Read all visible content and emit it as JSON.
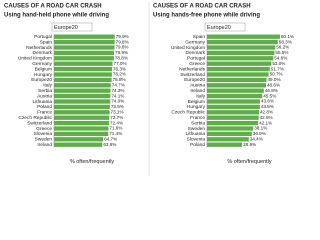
{
  "chart_data": [
    {
      "type": "barh",
      "title": "CAUSES OF A ROAD CAR CRASH",
      "subtitle": "Using hand-held phone while driving",
      "reference_label": "Europe20",
      "xlabel": "% often/frequently",
      "color": "#5fae4a",
      "xlim": [
        0,
        100
      ],
      "categories": [
        "Portugal",
        "Spain",
        "Netherlands",
        "Denmark",
        "United Kingdom",
        "Germany",
        "Belgium",
        "Hungary",
        "Europe20",
        "Italy",
        "Serbia",
        "Austria",
        "Lithuania",
        "Poland",
        "France",
        "Czech Republic",
        "Switzerland",
        "Greece",
        "Slovenia",
        "Sweden",
        "Ireland"
      ],
      "values": [
        79.9,
        79.8,
        79.6,
        78.9,
        78.8,
        77.0,
        76.3,
        76.2,
        75.8,
        74.7,
        74.3,
        74.1,
        74.0,
        73.5,
        73.1,
        72.7,
        72.4,
        71.6,
        71.4,
        64.7,
        63.6
      ],
      "value_labels": [
        "79.9%",
        "79.8%",
        "79.6%",
        "78.9%",
        "78.8%",
        "77.0%",
        "76.3%",
        "76.2%",
        "75.8%",
        "74.7%",
        "74.3%",
        "74.1%",
        "74.0%",
        "73.5%",
        "73.1%",
        "72.7%",
        "72.4%",
        "71.6%",
        "71.4%",
        "64.7%",
        "63.6%"
      ]
    },
    {
      "type": "barh",
      "title": "CAUSES OF A ROAD CAR CRASH",
      "subtitle": "Using hands-free phone while driving",
      "reference_label": "Europe20",
      "xlabel": "% often/frequently",
      "color": "#5fae4a",
      "xlim": [
        0,
        70
      ],
      "categories": [
        "Spain",
        "Germany",
        "United Kingdom",
        "Denmark",
        "Portugal",
        "Greece",
        "Netherlands",
        "Switzerland",
        "Europe20",
        "Austria",
        "Ireland",
        "Italy",
        "Belgium",
        "Hungary",
        "Czech Republic",
        "France",
        "Serbia",
        "Sweden",
        "Lithuania",
        "Slovenia",
        "Poland"
      ],
      "values": [
        60.1,
        58.3,
        56.2,
        55.5,
        54.6,
        53.0,
        51.7,
        50.7,
        49.0,
        48.6,
        46.8,
        45.5,
        43.6,
        43.5,
        42.8,
        42.5,
        42.1,
        38.1,
        36.9,
        34.4,
        28.9
      ],
      "value_labels": [
        "60.1%",
        "58.3%",
        "56.2%",
        "55.5%",
        "54.6%",
        "53.0%",
        "51.7%",
        "50.7%",
        "49.0%",
        "48.6%",
        "46.8%",
        "45.5%",
        "43.6%",
        "43.5%",
        "42.8%",
        "42.5%",
        "42.1%",
        "38.1%",
        "36.9%",
        "34.4%",
        "28.9%"
      ]
    }
  ]
}
